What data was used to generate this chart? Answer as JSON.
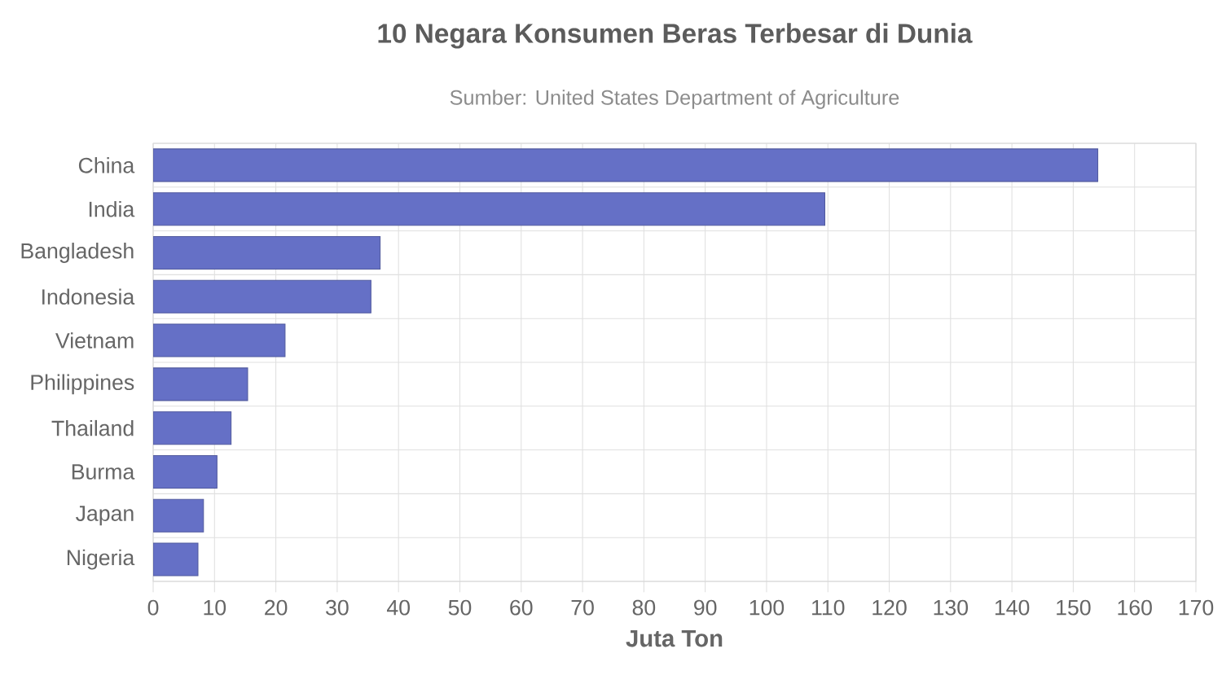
{
  "chart_data": {
    "type": "bar",
    "orientation": "horizontal",
    "title": "10 Negara Konsumen Beras Terbesar di Dunia",
    "subtitle": "Sumber: United States Department of Agriculture",
    "xlabel": "Juta Ton",
    "categories": [
      "China",
      "India",
      "Bangladesh",
      "Indonesia",
      "Vietnam",
      "Philippines",
      "Thailand",
      "Burma",
      "Japan",
      "Nigeria"
    ],
    "values": [
      154,
      109.5,
      37,
      35.5,
      21.5,
      15.4,
      12.7,
      10.4,
      8.2,
      7.3
    ],
    "color": "#6570c6",
    "xlim": [
      0,
      170
    ],
    "xticks": [
      0,
      10,
      20,
      30,
      40,
      50,
      60,
      70,
      80,
      90,
      100,
      110,
      120,
      130,
      140,
      150,
      160,
      170
    ],
    "grid": true
  }
}
